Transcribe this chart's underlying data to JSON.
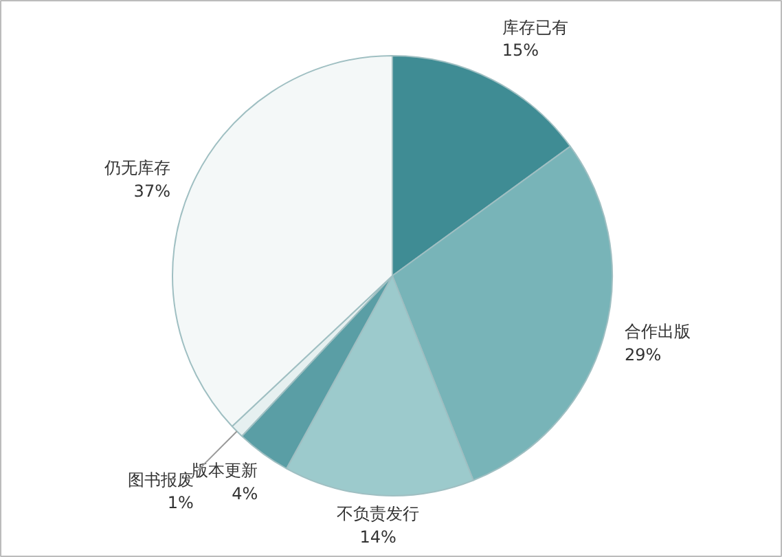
{
  "chart_data": {
    "type": "pie",
    "categories": [
      "库存已有",
      "合作出版",
      "不负责发行",
      "版本更新",
      "图书报废",
      "仍无库存"
    ],
    "values": [
      15,
      29,
      14,
      4,
      1,
      37
    ],
    "value_labels": [
      "15%",
      "29%",
      "14%",
      "4%",
      "1%",
      "37%"
    ],
    "colors": [
      "#3f8c94",
      "#78b4b8",
      "#9ccacc",
      "#5a9ea5",
      "#e6f0f0",
      "#f4f8f8"
    ]
  }
}
